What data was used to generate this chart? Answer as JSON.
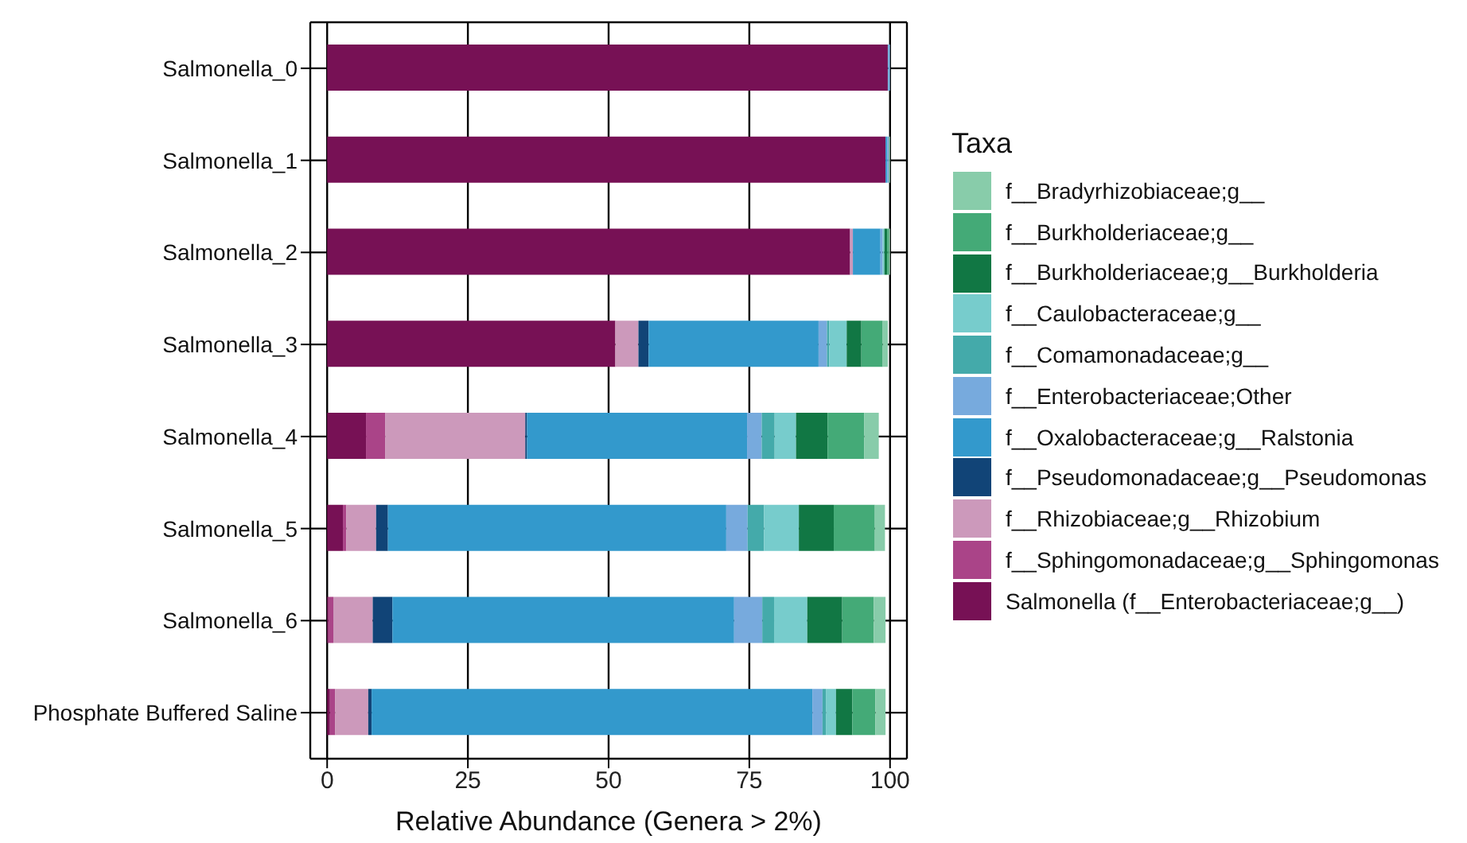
{
  "chart_data": {
    "type": "bar",
    "orientation": "horizontal",
    "stacked": true,
    "xlabel": "Relative Abundance (Genera > 2%)",
    "legend_title": "Taxa",
    "legend": "right",
    "grid": true,
    "categories": [
      "Salmonella_0",
      "Salmonella_1",
      "Salmonella_2",
      "Salmonella_3",
      "Salmonella_4",
      "Salmonella_5",
      "Salmonella_6",
      "Phosphate Buffered Saline"
    ],
    "xlim": [
      -3,
      103
    ],
    "xticks": [
      0,
      25,
      50,
      75,
      100
    ],
    "series": [
      {
        "name": "Salmonella (f__Enterobacteriaceae;g__)",
        "color": "#771155",
        "values": [
          99.6,
          99.2,
          92.9,
          51.2,
          6.9,
          2.8,
          0.2,
          0.5
        ]
      },
      {
        "name": "f__Sphingomonadaceae;g__Sphingomonas",
        "color": "#aa4488",
        "values": [
          0,
          0,
          0,
          0,
          3.4,
          0.6,
          0.9,
          0.9
        ]
      },
      {
        "name": "f__Rhizobiaceae;g__Rhizobium",
        "color": "#cc99bb",
        "values": [
          0,
          0,
          0.5,
          4.1,
          24.9,
          5.3,
          7.0,
          5.9
        ]
      },
      {
        "name": "f__Pseudomonadaceae;g__Pseudomonas",
        "color": "#114477",
        "values": [
          0,
          0,
          0,
          1.8,
          0.3,
          2.1,
          3.5,
          0.6
        ]
      },
      {
        "name": "f__Oxalobacteraceae;g__Ralstonia",
        "color": "#3399cc",
        "values": [
          0.1,
          0.3,
          4.9,
          30.2,
          39.1,
          60.1,
          60.7,
          78.3
        ]
      },
      {
        "name": "f__Enterobacteriaceae;Other",
        "color": "#77aadd",
        "values": [
          0.3,
          0.3,
          0.4,
          1.5,
          2.6,
          3.8,
          5.0,
          1.8
        ]
      },
      {
        "name": "f__Comamonadaceae;g__",
        "color": "#44aaaa",
        "values": [
          0,
          0,
          0,
          0.4,
          2.3,
          2.9,
          2.1,
          0.6
        ]
      },
      {
        "name": "f__Caulobacteraceae;g__",
        "color": "#77cccc",
        "values": [
          0,
          0,
          0.3,
          3.1,
          3.8,
          6.2,
          5.9,
          1.8
        ]
      },
      {
        "name": "f__Burkholderiaceae;g__Burkholderia",
        "color": "#117744",
        "values": [
          0,
          0,
          0.5,
          2.6,
          5.6,
          6.2,
          6.2,
          2.9
        ]
      },
      {
        "name": "f__Burkholderiaceae;g__",
        "color": "#44aa77",
        "values": [
          0,
          0,
          0.3,
          3.8,
          6.5,
          7.3,
          5.6,
          4.1
        ]
      },
      {
        "name": "f__Bradyrhizobiaceae;g__",
        "color": "#88ccaa",
        "values": [
          0,
          0.2,
          0.2,
          0.9,
          2.6,
          1.8,
          2.1,
          1.8
        ]
      }
    ]
  }
}
